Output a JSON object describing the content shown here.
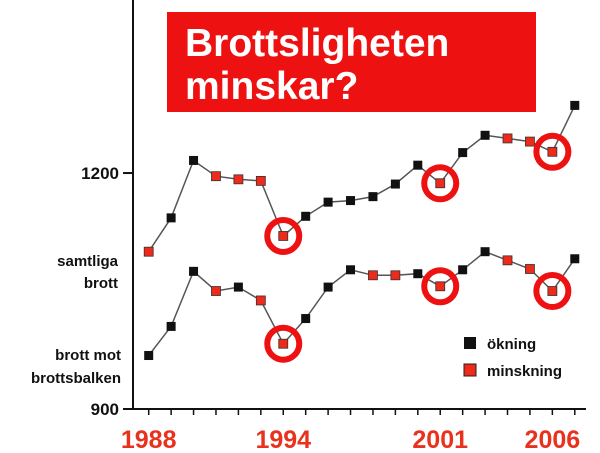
{
  "chart_data": {
    "type": "line",
    "title": "Brottsligheten minskar?",
    "x": [
      1988,
      1989,
      1990,
      1991,
      1992,
      1993,
      1994,
      1995,
      1996,
      1997,
      1998,
      1999,
      2000,
      2001,
      2002,
      2003,
      2004,
      2005,
      2006,
      2007
    ],
    "x_tick_labels": [
      "1988",
      "1994",
      "2001",
      "2006"
    ],
    "x_ticks": [
      1988,
      1994,
      2001,
      2006
    ],
    "xlim": [
      1987.3,
      2007.5
    ],
    "y_tick_labels": [
      "1200",
      "900"
    ],
    "y_ticks": [
      1200,
      900
    ],
    "ylim": [
      900,
      1420
    ],
    "grid": false,
    "series": [
      {
        "name": "samtliga brott",
        "values": [
          1100,
          1143,
          1216,
          1196,
          1192,
          1190,
          1120,
          1145,
          1163,
          1165,
          1170,
          1186,
          1210,
          1187,
          1226,
          1248,
          1244,
          1240,
          1227,
          1286
        ],
        "direction": [
          "minskning",
          "ökning",
          "ökning",
          "minskning",
          "minskning",
          "minskning",
          "minskning",
          "ökning",
          "ökning",
          "ökning",
          "ökning",
          "ökning",
          "ökning",
          "minskning",
          "ökning",
          "ökning",
          "minskning",
          "minskning",
          "minskning",
          "ökning"
        ],
        "circled_x": [
          1994,
          2001,
          2006
        ]
      },
      {
        "name": "brott mot brottsbalken",
        "values": [
          968,
          1005,
          1075,
          1050,
          1055,
          1038,
          983,
          1015,
          1055,
          1077,
          1070,
          1070,
          1072,
          1056,
          1077,
          1100,
          1089,
          1078,
          1050,
          1091
        ],
        "direction": [
          "ökning",
          "ökning",
          "ökning",
          "minskning",
          "ökning",
          "minskning",
          "minskning",
          "ökning",
          "ökning",
          "ökning",
          "minskning",
          "minskning",
          "ökning",
          "minskning",
          "ökning",
          "ökning",
          "minskning",
          "minskning",
          "minskning",
          "ökning"
        ],
        "circled_x": [
          1994,
          2001,
          2006
        ]
      }
    ],
    "legend": {
      "placement": "bottom-right",
      "items": [
        {
          "label": "ökning",
          "color": "#111111"
        },
        {
          "label": "minskning",
          "color": "#ee2a1a"
        }
      ]
    },
    "colors": {
      "increase": "#111111",
      "decrease": "#ee2a1a",
      "line": "#555555",
      "circle": "#ee1111",
      "x_labels": "#e8321e",
      "title_background": "#ee1111",
      "title_text": "#ffffff"
    }
  }
}
